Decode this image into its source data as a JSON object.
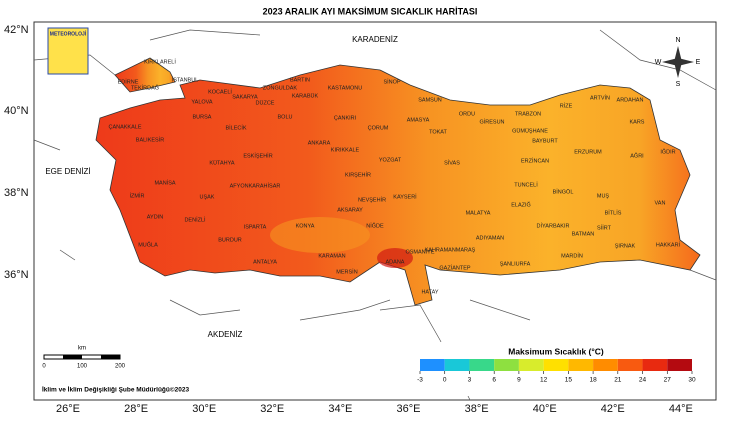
{
  "title": "2023 ARALIK AYI MAKSİMUM SICAKLIK HARİTASI",
  "logo": "METEOROLOJİ",
  "axes": {
    "lat_labels": [
      "42°N",
      "40°N",
      "38°N",
      "36°N"
    ],
    "lon_labels": [
      "26°E",
      "28°E",
      "30°E",
      "32°E",
      "34°E",
      "36°E",
      "38°E",
      "40°E",
      "42°E",
      "44°E"
    ]
  },
  "seas": [
    "KARADENİZ",
    "EGE DENİZİ",
    "AKDENİZ"
  ],
  "compass": [
    "N",
    "S",
    "E",
    "W"
  ],
  "scale_bar": {
    "unit": "km",
    "ticks": [
      0,
      100,
      200
    ]
  },
  "credit": "İklim ve İklim Değişikliği Şube Müdürlüğü©2023",
  "legend": {
    "title": "Maksimum Sıcaklık (°C)",
    "ticks": [
      -3,
      0,
      3,
      6,
      9,
      12,
      15,
      18,
      21,
      24,
      27,
      30
    ],
    "colors": [
      "#1e90ff",
      "#19c8d8",
      "#38d88a",
      "#8ee040",
      "#d8ec2c",
      "#ffe000",
      "#ffb800",
      "#ff8c00",
      "#f85a10",
      "#e82a10",
      "#b40a10"
    ]
  },
  "provinces": [
    "KIRKLARELİ",
    "EDİRNE",
    "TEKİRDAĞ",
    "İSTANBUL",
    "KOCAELİ",
    "YALOVA",
    "SAKARYA",
    "DÜZCE",
    "ZONGULDAK",
    "BARTIN",
    "KARABÜK",
    "KASTAMONU",
    "SİNOP",
    "SAMSUN",
    "ORDU",
    "GİRESUN",
    "TRABZON",
    "RİZE",
    "ARTVİN",
    "ARDAHAN",
    "KARS",
    "IĞDIR",
    "AĞRI",
    "ERZURUM",
    "BAYBURT",
    "GÜMÜŞHANE",
    "ERZİNCAN",
    "TUNCELİ",
    "BİNGÖL",
    "MUŞ",
    "BİTLİS",
    "VAN",
    "HAKKARİ",
    "ŞIRNAK",
    "SİİRT",
    "BATMAN",
    "MARDİN",
    "DİYARBAKIR",
    "ŞANLIURFA",
    "ADIYAMAN",
    "MALATYA",
    "ELAZIĞ",
    "GAZİANTEP",
    "OSMANİYE",
    "KAHRAMANMARAŞ",
    "HATAY",
    "ADANA",
    "MERSİN",
    "KARAMAN",
    "NİĞDE",
    "AKSARAY",
    "KAYSERİ",
    "SİVAS",
    "TOKAT",
    "AMASYA",
    "ÇORUM",
    "YOZGAT",
    "KIRŞEHİR",
    "NEVŞEHİR",
    "KIRIKKALE",
    "ÇANKIRI",
    "ANKARA",
    "KONYA",
    "ESKİŞEHİR",
    "BİLECİK",
    "BOLU",
    "BURSA",
    "BALIKESİR",
    "ÇANAKKALE",
    "MANİSA",
    "İZMİR",
    "AYDIN",
    "MUĞLA",
    "DENİZLİ",
    "UŞAK",
    "KÜTAHYA",
    "AFYONKARAHİSAR",
    "ISPARTA",
    "BURDUR",
    "ANTALYA"
  ]
}
